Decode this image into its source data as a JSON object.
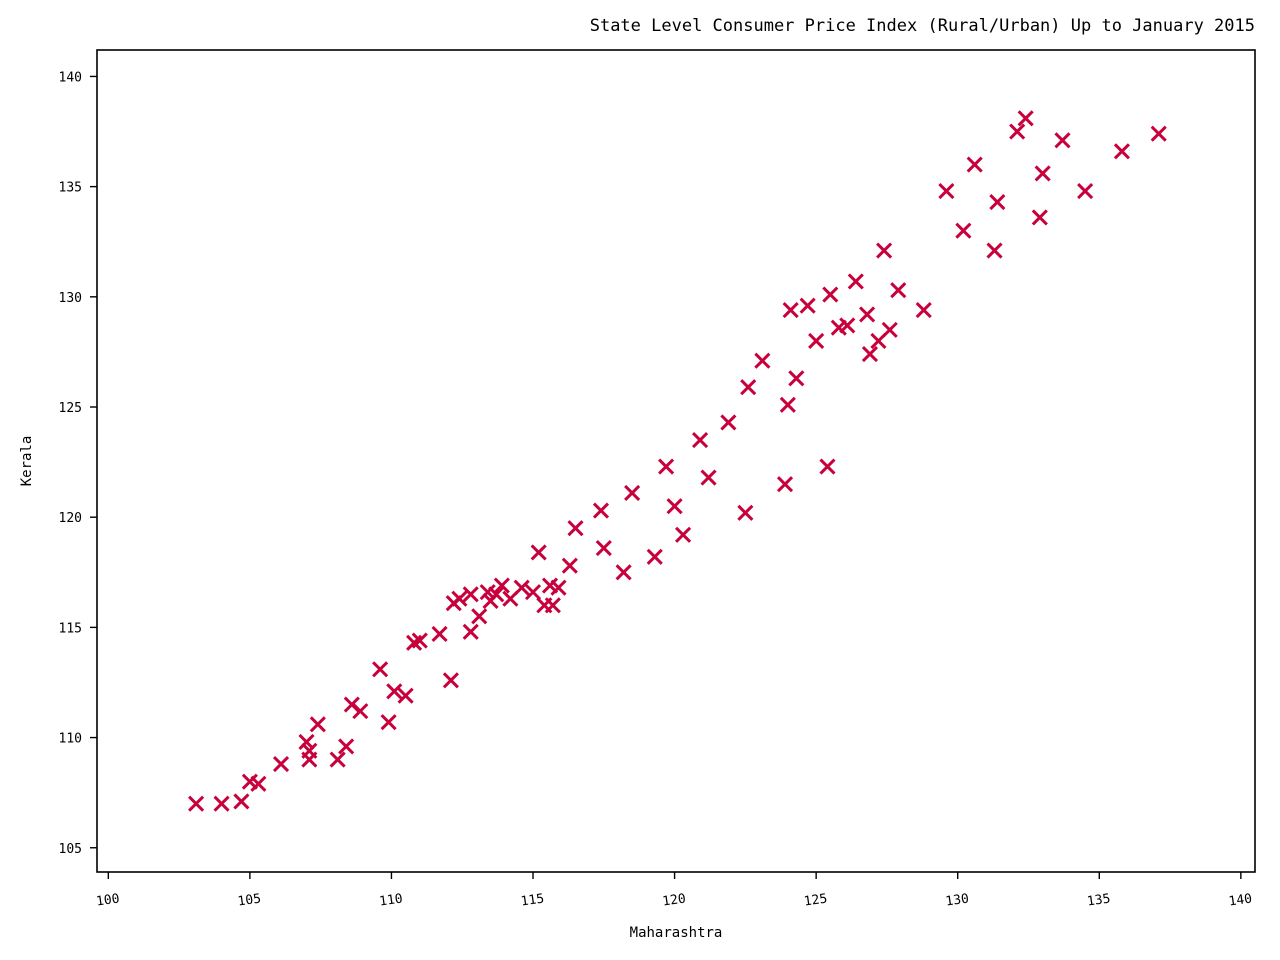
{
  "chart_data": {
    "type": "scatter",
    "title": "State Level Consumer Price Index (Rural/Urban) Up to January 2015",
    "xlabel": "Maharashtra",
    "ylabel": "Kerala",
    "xlim": [
      99.6,
      140.5
    ],
    "ylim": [
      103.9,
      141.2
    ],
    "x_ticks": [
      100,
      105,
      110,
      115,
      120,
      125,
      130,
      135,
      140
    ],
    "y_ticks": [
      105,
      110,
      115,
      120,
      125,
      130,
      135,
      140
    ],
    "marker": "x",
    "marker_color": "#c8003c",
    "grid": false,
    "legend": "none",
    "points": [
      [
        103.1,
        107.0
      ],
      [
        104.0,
        107.0
      ],
      [
        104.7,
        107.1
      ],
      [
        105.0,
        108.0
      ],
      [
        105.3,
        107.9
      ],
      [
        106.1,
        108.8
      ],
      [
        107.0,
        109.8
      ],
      [
        107.1,
        109.0
      ],
      [
        107.1,
        109.4
      ],
      [
        107.4,
        110.6
      ],
      [
        108.1,
        109.0
      ],
      [
        108.4,
        109.6
      ],
      [
        108.6,
        111.5
      ],
      [
        108.9,
        111.2
      ],
      [
        109.6,
        113.1
      ],
      [
        109.9,
        110.7
      ],
      [
        110.1,
        112.1
      ],
      [
        110.5,
        111.9
      ],
      [
        110.8,
        114.3
      ],
      [
        111.0,
        114.4
      ],
      [
        111.7,
        114.7
      ],
      [
        112.1,
        112.6
      ],
      [
        112.2,
        116.1
      ],
      [
        112.4,
        116.3
      ],
      [
        112.8,
        114.8
      ],
      [
        112.8,
        116.5
      ],
      [
        113.1,
        115.5
      ],
      [
        113.4,
        116.6
      ],
      [
        113.5,
        116.2
      ],
      [
        113.7,
        116.5
      ],
      [
        113.9,
        116.9
      ],
      [
        114.2,
        116.3
      ],
      [
        114.6,
        116.8
      ],
      [
        115.0,
        116.6
      ],
      [
        115.2,
        118.4
      ],
      [
        115.4,
        116.0
      ],
      [
        115.6,
        116.9
      ],
      [
        115.7,
        116.0
      ],
      [
        115.9,
        116.8
      ],
      [
        116.3,
        117.8
      ],
      [
        116.5,
        119.5
      ],
      [
        117.4,
        120.3
      ],
      [
        117.5,
        118.6
      ],
      [
        118.2,
        117.5
      ],
      [
        118.5,
        121.1
      ],
      [
        119.3,
        118.2
      ],
      [
        119.7,
        122.3
      ],
      [
        120.0,
        120.5
      ],
      [
        120.3,
        119.2
      ],
      [
        120.9,
        123.5
      ],
      [
        121.2,
        121.8
      ],
      [
        121.9,
        124.3
      ],
      [
        122.5,
        120.2
      ],
      [
        122.6,
        125.9
      ],
      [
        123.1,
        127.1
      ],
      [
        123.9,
        121.5
      ],
      [
        124.0,
        125.1
      ],
      [
        124.1,
        129.4
      ],
      [
        124.3,
        126.3
      ],
      [
        124.7,
        129.6
      ],
      [
        125.0,
        128.0
      ],
      [
        125.4,
        122.3
      ],
      [
        125.5,
        130.1
      ],
      [
        125.8,
        128.6
      ],
      [
        126.1,
        128.7
      ],
      [
        126.4,
        130.7
      ],
      [
        126.8,
        129.2
      ],
      [
        126.9,
        127.4
      ],
      [
        127.2,
        128.0
      ],
      [
        127.4,
        132.1
      ],
      [
        127.6,
        128.5
      ],
      [
        127.9,
        130.3
      ],
      [
        128.8,
        129.4
      ],
      [
        129.6,
        134.8
      ],
      [
        130.2,
        133.0
      ],
      [
        130.6,
        136.0
      ],
      [
        131.3,
        132.1
      ],
      [
        131.4,
        134.3
      ],
      [
        132.1,
        137.5
      ],
      [
        132.4,
        138.1
      ],
      [
        132.9,
        133.6
      ],
      [
        133.0,
        135.6
      ],
      [
        133.7,
        137.1
      ],
      [
        134.5,
        134.8
      ],
      [
        135.8,
        136.6
      ],
      [
        137.1,
        137.4
      ]
    ]
  }
}
